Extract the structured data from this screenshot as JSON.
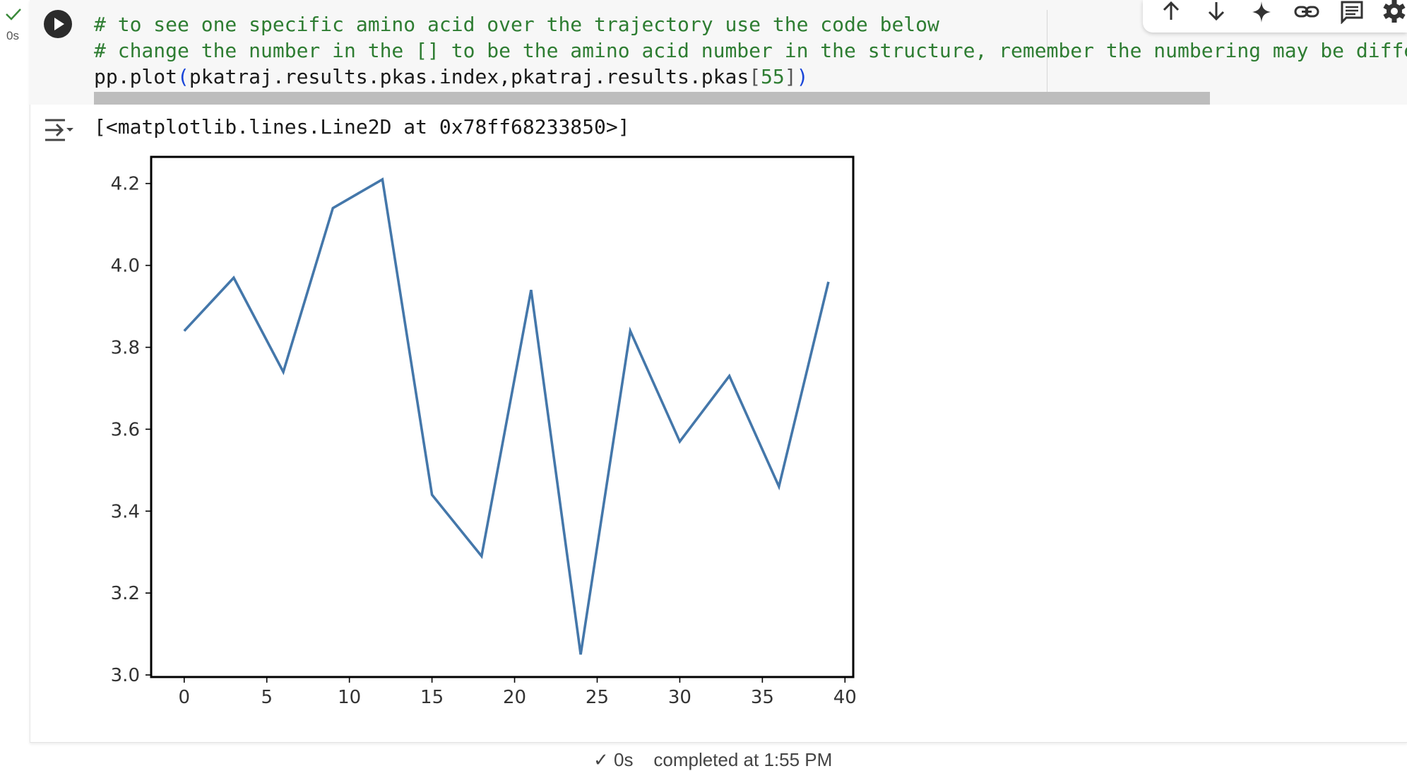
{
  "cell": {
    "exec_time": "0s",
    "code_lines": {
      "line1": "# to see one specific amino acid over the trajectory use the code below",
      "line2": "# change the number in the [] to be the amino acid number in the structure, remember the numbering may be diffe",
      "line3_func": "pp.plot",
      "line3_open": "(",
      "line3_args": "pkatraj.results.pkas.index,pkatraj.results.pkas",
      "line3_lbr": "[",
      "line3_num": "55",
      "line3_rbr": "]",
      "line3_close": ")"
    }
  },
  "toolbar": {
    "icons": [
      "arrow-up-icon",
      "arrow-down-icon",
      "sparkle-icon",
      "link-icon",
      "comment-icon",
      "gear-icon"
    ]
  },
  "output": {
    "text": "[<matplotlib.lines.Line2D at 0x78ff68233850>]"
  },
  "footer": {
    "text": "✓ 0s    completed at 1:55 PM"
  },
  "colors": {
    "line": "#4477aa",
    "comment": "#2e7d32",
    "code_bg": "#f7f7f7"
  },
  "chart_data": {
    "type": "line",
    "x": [
      0,
      3,
      6,
      9,
      12,
      15,
      18,
      21,
      24,
      27,
      30,
      33,
      36,
      39
    ],
    "values": [
      3.84,
      3.97,
      3.74,
      4.14,
      4.21,
      3.44,
      3.29,
      3.94,
      3.05,
      3.84,
      3.57,
      3.73,
      3.46,
      3.96
    ],
    "xlim": [
      -2,
      40.5
    ],
    "ylim": [
      2.995,
      4.265
    ],
    "xticks": [
      0,
      5,
      10,
      15,
      20,
      25,
      30,
      35,
      40
    ],
    "yticks": [
      3.0,
      3.2,
      3.4,
      3.6,
      3.8,
      4.0,
      4.2
    ],
    "ytick_labels": [
      "3.0",
      "3.2",
      "3.4",
      "3.6",
      "3.8",
      "4.0",
      "4.2"
    ],
    "title": "",
    "xlabel": "",
    "ylabel": "",
    "grid": false
  }
}
